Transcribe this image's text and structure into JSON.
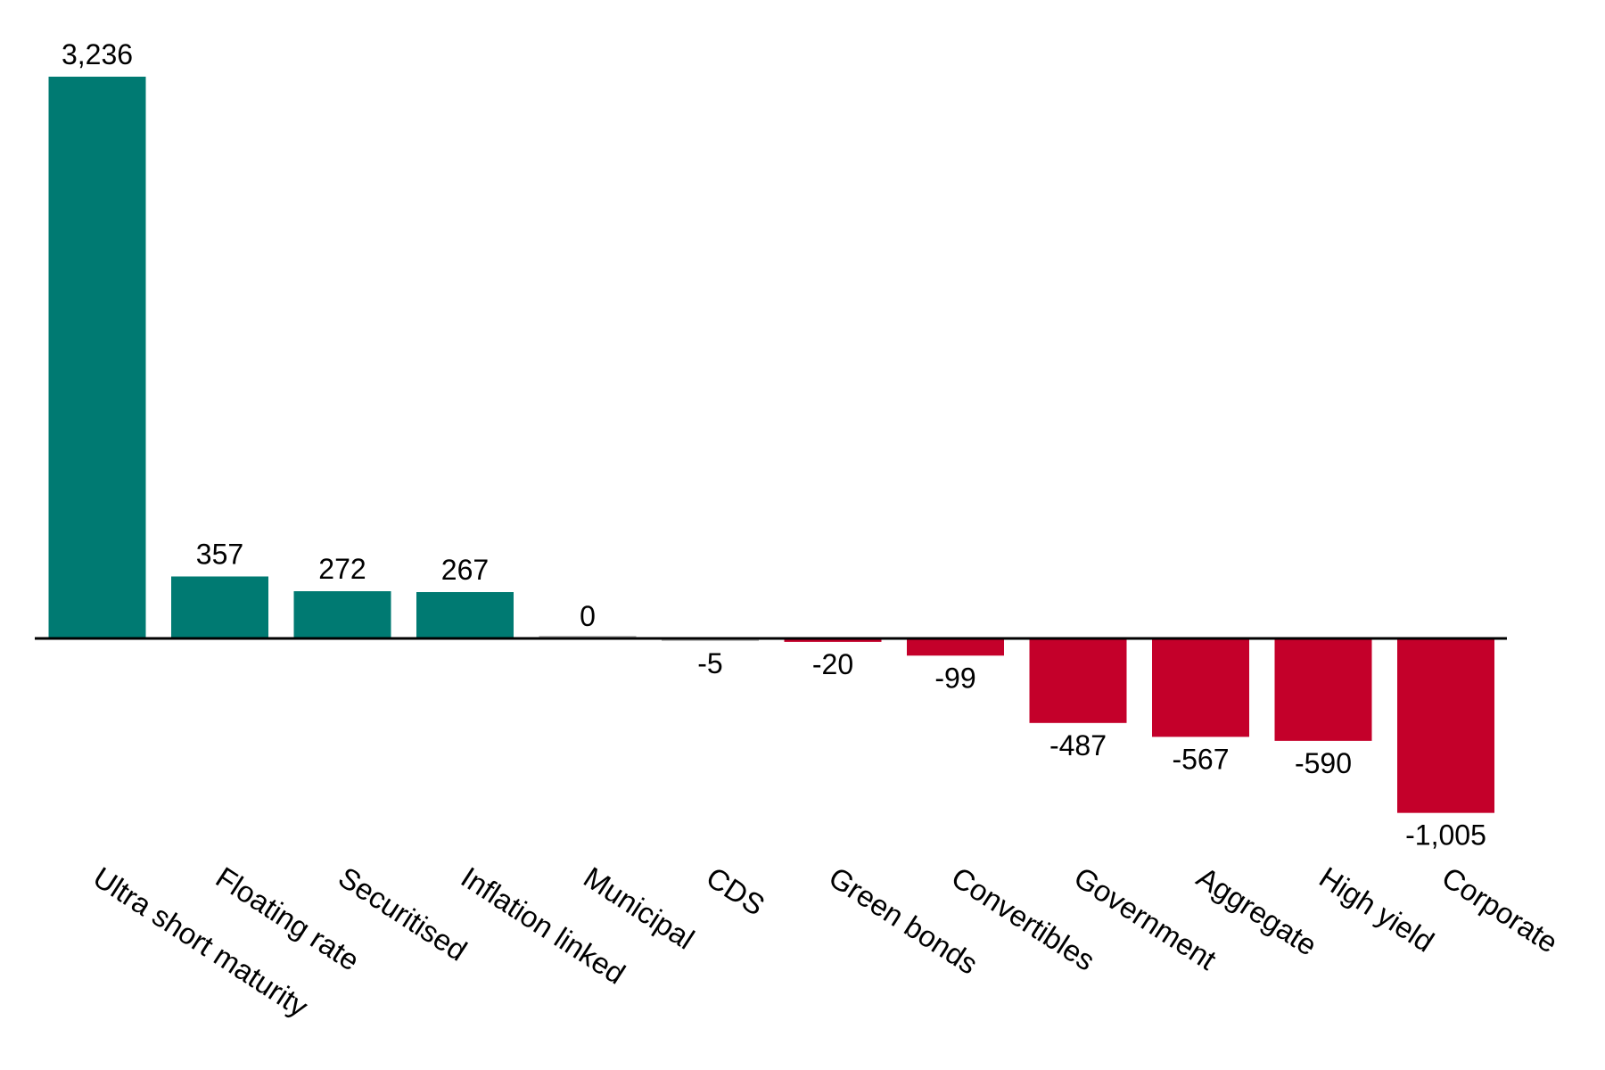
{
  "chart_data": {
    "type": "bar",
    "categories": [
      "Ultra short maturity",
      "Floating rate",
      "Securitised",
      "Inflation linked",
      "Municipal",
      "CDS",
      "Green bonds",
      "Convertibles",
      "Government",
      "Aggregate",
      "High yield",
      "Corporate"
    ],
    "values": [
      3236,
      357,
      272,
      267,
      0,
      -5,
      -20,
      -99,
      -487,
      -567,
      -590,
      -1005
    ],
    "value_labels": [
      "3,236",
      "357",
      "272",
      "267",
      "0",
      "-5",
      "-20",
      "-99",
      "-487",
      "-567",
      "-590",
      "-1,005"
    ],
    "title": "",
    "xlabel": "",
    "ylabel": "",
    "ylim": [
      -1100,
      3400
    ],
    "grid": false,
    "legend": "none",
    "colors": {
      "positive": "#007A72",
      "negative": "#C4002A",
      "zero_line": "#000000"
    }
  }
}
